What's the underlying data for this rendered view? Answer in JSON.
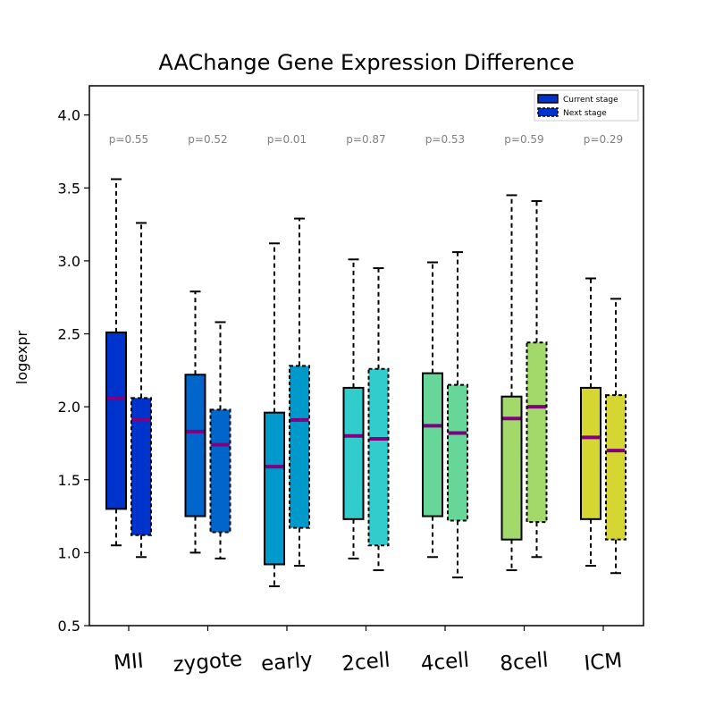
{
  "chart_data": {
    "type": "box",
    "title": "AAChange Gene Expression Difference",
    "xlabel": "",
    "ylabel": "logexpr",
    "ylim": [
      0.5,
      4.2
    ],
    "yticks": [
      "0.5",
      "1.0",
      "1.5",
      "2.0",
      "2.5",
      "3.0",
      "3.5",
      "4.0"
    ],
    "grid": false,
    "legend": {
      "placement": "top-right",
      "entries": [
        {
          "label": "Current stage",
          "style": "solid"
        },
        {
          "label": "Next stage",
          "style": "dashed"
        }
      ]
    },
    "categories": [
      "MII",
      "zygote",
      "early",
      "2cell",
      "4cell",
      "8cell",
      "ICM"
    ],
    "colors": [
      "#0033cc",
      "#0066cc",
      "#0099cc",
      "#33cccc",
      "#66d699",
      "#a3d96b",
      "#d6d633"
    ],
    "median_color": "#800080",
    "p_values": [
      "p=0.55",
      "p=0.52",
      "p=0.01",
      "p=0.87",
      "p=0.53",
      "p=0.59",
      "p=0.29"
    ],
    "series": [
      {
        "name": "Current stage",
        "boxes": [
          {
            "whislo": 1.05,
            "q1": 1.3,
            "med": 2.06,
            "q3": 2.51,
            "whishi": 3.56
          },
          {
            "whislo": 1.0,
            "q1": 1.25,
            "med": 1.83,
            "q3": 2.22,
            "whishi": 2.79
          },
          {
            "whislo": 0.77,
            "q1": 0.92,
            "med": 1.59,
            "q3": 1.96,
            "whishi": 3.12
          },
          {
            "whislo": 0.96,
            "q1": 1.23,
            "med": 1.8,
            "q3": 2.13,
            "whishi": 3.01
          },
          {
            "whislo": 0.97,
            "q1": 1.25,
            "med": 1.87,
            "q3": 2.23,
            "whishi": 2.99
          },
          {
            "whislo": 0.88,
            "q1": 1.09,
            "med": 1.92,
            "q3": 2.07,
            "whishi": 3.45
          },
          {
            "whislo": 0.91,
            "q1": 1.23,
            "med": 1.79,
            "q3": 2.13,
            "whishi": 2.88
          }
        ]
      },
      {
        "name": "Next stage",
        "boxes": [
          {
            "whislo": 0.97,
            "q1": 1.12,
            "med": 1.91,
            "q3": 2.06,
            "whishi": 3.26
          },
          {
            "whislo": 0.96,
            "q1": 1.14,
            "med": 1.74,
            "q3": 1.98,
            "whishi": 2.58
          },
          {
            "whislo": 0.91,
            "q1": 1.17,
            "med": 1.91,
            "q3": 2.28,
            "whishi": 3.29
          },
          {
            "whislo": 0.88,
            "q1": 1.05,
            "med": 1.78,
            "q3": 2.26,
            "whishi": 2.95
          },
          {
            "whislo": 0.83,
            "q1": 1.22,
            "med": 1.82,
            "q3": 2.15,
            "whishi": 3.06
          },
          {
            "whislo": 0.97,
            "q1": 1.21,
            "med": 2.0,
            "q3": 2.44,
            "whishi": 3.41
          },
          {
            "whislo": 0.86,
            "q1": 1.09,
            "med": 1.7,
            "q3": 2.08,
            "whishi": 2.74
          }
        ]
      }
    ]
  }
}
